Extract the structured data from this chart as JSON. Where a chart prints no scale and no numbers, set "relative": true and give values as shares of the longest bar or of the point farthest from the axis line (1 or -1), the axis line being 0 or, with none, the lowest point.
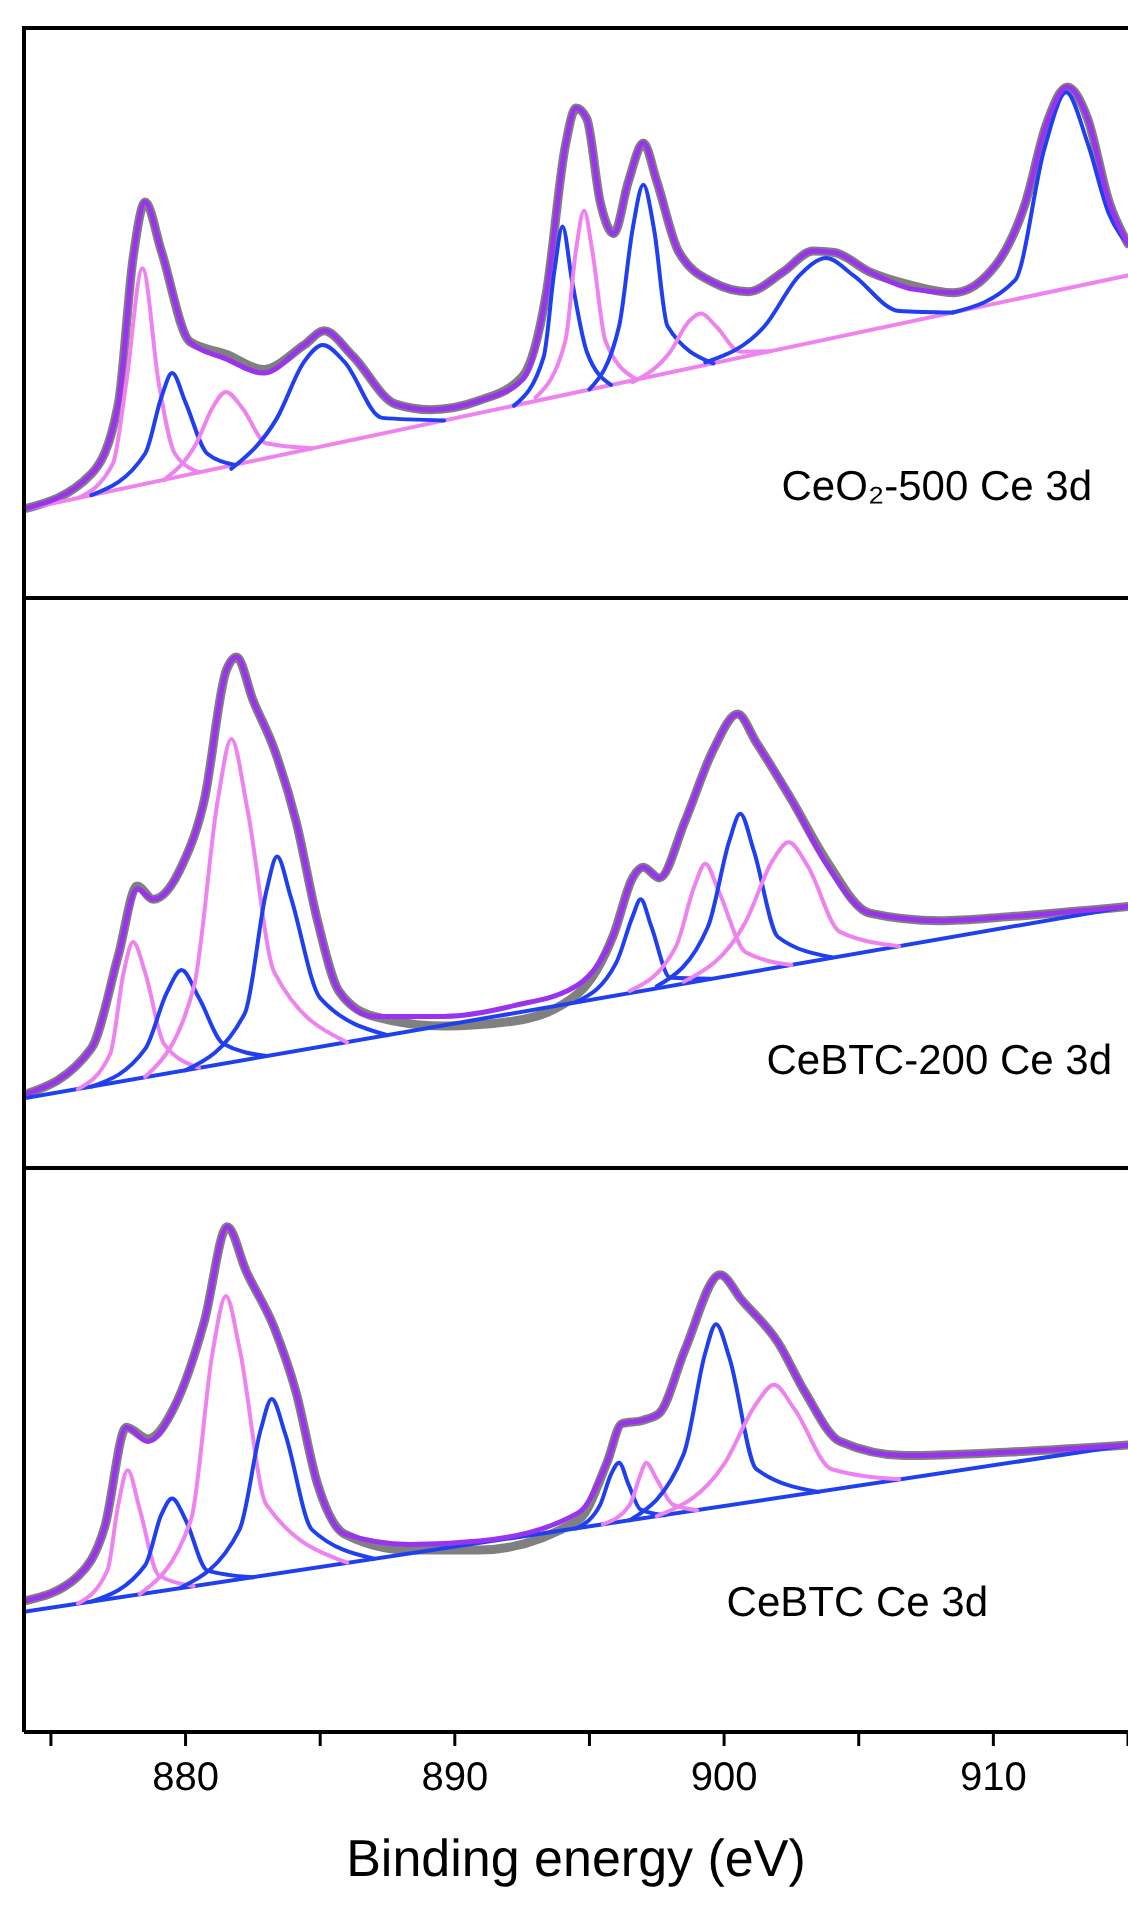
{
  "chart_data": [
    {
      "type": "line",
      "relative": true,
      "xlim": [
        874,
        915
      ],
      "tick_labels": false,
      "annotations": [
        "CeO₂-500 Ce 3d"
      ],
      "series": [
        {
          "color": "#808080",
          "x": [
            874,
            876.5,
            877.5,
            878.05,
            878.5,
            879.1,
            880.15,
            881.5,
            882.9,
            884.4,
            885.15,
            886.2,
            887.8,
            889.1,
            890.9,
            892.5,
            893.4,
            894.1,
            894.5,
            894.9,
            895.4,
            895.9,
            896.45,
            897.0,
            897.5,
            898.3,
            899.6,
            900.9,
            902.2,
            903.3,
            904.1,
            905.4,
            907.0,
            908.5,
            910.1,
            911.2,
            911.95,
            912.75,
            913.5,
            914.3,
            915
          ],
          "values": [
            0.171,
            0.24,
            0.377,
            0.664,
            0.774,
            0.678,
            0.5,
            0.475,
            0.445,
            0.493,
            0.521,
            0.472,
            0.377,
            0.366,
            0.384,
            0.43,
            0.596,
            0.883,
            0.959,
            0.938,
            0.774,
            0.712,
            0.815,
            0.89,
            0.815,
            0.678,
            0.616,
            0.598,
            0.637,
            0.678,
            0.675,
            0.637,
            0.61,
            0.596,
            0.651,
            0.774,
            0.924,
            1.0,
            0.938,
            0.774,
            0.692
          ]
        },
        {
          "color": "#ee82ee",
          "x": [
            874,
            915
          ],
          "values": [
            0.17,
            0.63
          ]
        },
        {
          "color": "#ee82ee",
          "x": [
            876,
            877.3,
            877.8,
            878.4,
            879.0,
            879.6,
            880.5
          ],
          "values": [
            0.192,
            0.26,
            0.42,
            0.644,
            0.42,
            0.28,
            0.243
          ]
        },
        {
          "color": "#2040f0",
          "x": [
            876.5,
            878.5,
            879.1,
            879.5,
            880.0,
            880.8,
            881.8
          ],
          "values": [
            0.198,
            0.28,
            0.39,
            0.438,
            0.38,
            0.28,
            0.258
          ]
        },
        {
          "color": "#ee82ee",
          "x": [
            879.2,
            880.4,
            881.0,
            881.5,
            882.1,
            883.0,
            884.7
          ],
          "values": [
            0.228,
            0.3,
            0.37,
            0.401,
            0.37,
            0.3,
            0.29
          ]
        },
        {
          "color": "#2040f0",
          "x": [
            881.7,
            883.4,
            884.4,
            885.1,
            885.9,
            887.3,
            889.6
          ],
          "values": [
            0.25,
            0.35,
            0.46,
            0.493,
            0.46,
            0.35,
            0.345
          ]
        },
        {
          "color": "#2040f0",
          "x": [
            892.2,
            893.3,
            893.7,
            894.0,
            894.35,
            894.9,
            895.8
          ],
          "values": [
            0.374,
            0.47,
            0.64,
            0.726,
            0.62,
            0.48,
            0.415
          ]
        },
        {
          "color": "#ee82ee",
          "x": [
            893.0,
            894.1,
            894.5,
            894.8,
            895.1,
            895.6,
            896.7
          ],
          "values": [
            0.39,
            0.5,
            0.68,
            0.757,
            0.68,
            0.5,
            0.427
          ]
        },
        {
          "color": "#2040f0",
          "x": [
            895.0,
            896.1,
            896.6,
            897.0,
            897.4,
            897.9,
            899.6
          ],
          "values": [
            0.406,
            0.53,
            0.72,
            0.808,
            0.72,
            0.53,
            0.457
          ]
        },
        {
          "color": "#ee82ee",
          "x": [
            896.6,
            898.0,
            898.7,
            899.15,
            899.7,
            900.6,
            901.7
          ],
          "values": [
            0.42,
            0.48,
            0.54,
            0.555,
            0.53,
            0.48,
            0.481
          ]
        },
        {
          "color": "#2040f0",
          "x": [
            899.3,
            901.5,
            902.8,
            903.8,
            904.8,
            906.5,
            908.5
          ],
          "values": [
            0.459,
            0.53,
            0.63,
            0.664,
            0.63,
            0.56,
            0.557
          ]
        },
        {
          "color": "#2040f0",
          "x": [
            908.5,
            910.8,
            911.9,
            912.7,
            913.5,
            914.3,
            915
          ],
          "values": [
            0.557,
            0.62,
            0.88,
            0.99,
            0.89,
            0.75,
            0.692
          ]
        },
        {
          "color": "#9933ee",
          "x": [
            874,
            876.5,
            877.5,
            878.05,
            878.5,
            879.1,
            880.15,
            881.5,
            882.9,
            884.4,
            885.15,
            886.2,
            887.8,
            889.1,
            890.9,
            892.5,
            893.4,
            894.1,
            894.5,
            894.9,
            895.4,
            895.9,
            896.45,
            897.0,
            897.5,
            898.3,
            899.6,
            900.9,
            902.2,
            903.3,
            904.1,
            905.4,
            907.0,
            908.5,
            910.1,
            911.2,
            911.95,
            912.75,
            913.5,
            914.3,
            915
          ],
          "values": [
            0.171,
            0.24,
            0.377,
            0.664,
            0.774,
            0.678,
            0.5,
            0.466,
            0.438,
            0.493,
            0.521,
            0.472,
            0.377,
            0.366,
            0.384,
            0.425,
            0.596,
            0.883,
            0.959,
            0.938,
            0.774,
            0.712,
            0.815,
            0.89,
            0.815,
            0.678,
            0.616,
            0.598,
            0.637,
            0.678,
            0.675,
            0.637,
            0.603,
            0.596,
            0.651,
            0.774,
            0.924,
            1.0,
            0.938,
            0.774,
            0.692
          ]
        }
      ]
    },
    {
      "type": "line",
      "relative": true,
      "xlim": [
        874,
        915
      ],
      "tick_labels": false,
      "annotations": [
        "CeBTC-200 Ce 3d"
      ],
      "series": [
        {
          "color": "#808080",
          "x": [
            874,
            876.5,
            877.5,
            878.2,
            878.8,
            879.9,
            880.7,
            881.5,
            881.9,
            882.5,
            883.3,
            884.1,
            884.9,
            885.7,
            887.0,
            889.6,
            892.2,
            894.6,
            895.9,
            896.6,
            897.0,
            897.6,
            898.55,
            899.6,
            900.5,
            901.2,
            902.5,
            903.8,
            905.4,
            908.0,
            910.6,
            915
          ],
          "values": [
            0.14,
            0.231,
            0.413,
            0.55,
            0.524,
            0.594,
            0.72,
            0.972,
            1.0,
            0.916,
            0.818,
            0.678,
            0.482,
            0.343,
            0.294,
            0.275,
            0.285,
            0.34,
            0.455,
            0.566,
            0.587,
            0.566,
            0.678,
            0.818,
            0.888,
            0.832,
            0.72,
            0.6,
            0.497,
            0.482,
            0.49,
            0.51
          ]
        },
        {
          "color": "#2040f0",
          "x": [
            874,
            915
          ],
          "values": [
            0.133,
            0.51
          ]
        },
        {
          "color": "#ee82ee",
          "x": [
            876,
            877.2,
            877.7,
            878.05,
            878.5,
            879.2,
            880.5
          ],
          "values": [
            0.151,
            0.22,
            0.38,
            0.44,
            0.38,
            0.24,
            0.193
          ]
        },
        {
          "color": "#2040f0",
          "x": [
            876.5,
            878.5,
            879.3,
            879.85,
            880.5,
            881.4,
            883
          ],
          "values": [
            0.156,
            0.23,
            0.34,
            0.385,
            0.33,
            0.24,
            0.216
          ]
        },
        {
          "color": "#ee82ee",
          "x": [
            878.5,
            880.3,
            881.2,
            881.7,
            882.3,
            883.3,
            886
          ],
          "values": [
            0.175,
            0.35,
            0.72,
            0.839,
            0.7,
            0.38,
            0.243
          ]
        },
        {
          "color": "#2040f0",
          "x": [
            880,
            882.2,
            883,
            883.4,
            883.9,
            885,
            887.5
          ],
          "values": [
            0.188,
            0.3,
            0.54,
            0.608,
            0.53,
            0.33,
            0.257
          ]
        },
        {
          "color": "#2040f0",
          "x": [
            894.5,
            896.0,
            896.6,
            896.9,
            897.3,
            898.0,
            899.5
          ],
          "values": [
            0.322,
            0.4,
            0.49,
            0.524,
            0.47,
            0.37,
            0.368
          ]
        },
        {
          "color": "#ee82ee",
          "x": [
            896.5,
            898.2,
            898.9,
            899.3,
            899.8,
            900.8,
            902.5
          ],
          "values": [
            0.344,
            0.43,
            0.55,
            0.594,
            0.54,
            0.42,
            0.395
          ]
        },
        {
          "color": "#2040f0",
          "x": [
            897.5,
            899.4,
            900.2,
            900.6,
            901.1,
            902.0,
            904
          ],
          "values": [
            0.353,
            0.47,
            0.64,
            0.692,
            0.62,
            0.45,
            0.41
          ]
        },
        {
          "color": "#ee82ee",
          "x": [
            898.5,
            900.8,
            901.8,
            902.4,
            903.1,
            904.3,
            906.5
          ],
          "values": [
            0.362,
            0.48,
            0.6,
            0.636,
            0.59,
            0.46,
            0.432
          ]
        },
        {
          "color": "#9933ee",
          "x": [
            874,
            876.5,
            877.5,
            878.2,
            878.8,
            879.9,
            880.7,
            881.5,
            881.9,
            882.5,
            883.3,
            884.1,
            884.9,
            885.7,
            887.0,
            889.6,
            892.2,
            894.6,
            895.9,
            896.6,
            897.0,
            897.6,
            898.55,
            899.6,
            900.5,
            901.2,
            902.5,
            903.8,
            905.4,
            908.0,
            910.6,
            915
          ],
          "values": [
            0.14,
            0.231,
            0.413,
            0.545,
            0.524,
            0.594,
            0.72,
            0.972,
            1.0,
            0.916,
            0.818,
            0.678,
            0.482,
            0.343,
            0.294,
            0.294,
            0.315,
            0.357,
            0.455,
            0.566,
            0.587,
            0.566,
            0.678,
            0.818,
            0.888,
            0.832,
            0.72,
            0.594,
            0.497,
            0.482,
            0.49,
            0.51
          ]
        }
      ]
    },
    {
      "type": "line",
      "relative": true,
      "xlim": [
        874,
        915
      ],
      "xticks": [
        {
          "value": 875,
          "label": null
        },
        880,
        {
          "value": 885,
          "label": null
        },
        890,
        {
          "value": 895,
          "label": null
        },
        900,
        {
          "value": 905,
          "label": null
        },
        910,
        {
          "value": 915,
          "label": null
        }
      ],
      "tick_labels": "x",
      "xlabel": "Binding energy (eV)",
      "annotations": [
        "CeBTC Ce 3d"
      ],
      "series": [
        {
          "color": "#808080",
          "x": [
            874,
            876.0,
            877.0,
            877.8,
            878.6,
            879.6,
            880.7,
            881.55,
            882.25,
            883.3,
            884.1,
            884.9,
            885.9,
            888.3,
            890.9,
            894.6,
            895.65,
            896.2,
            897.0,
            897.6,
            898.55,
            899.85,
            900.65,
            902.0,
            903.0,
            904.3,
            906.7,
            910.6,
            915
          ],
          "values": [
            0.259,
            0.308,
            0.406,
            0.603,
            0.58,
            0.645,
            0.813,
            1.0,
            0.912,
            0.799,
            0.673,
            0.491,
            0.392,
            0.36,
            0.36,
            0.42,
            0.533,
            0.61,
            0.617,
            0.631,
            0.757,
            0.905,
            0.855,
            0.771,
            0.673,
            0.575,
            0.547,
            0.554,
            0.568
          ]
        },
        {
          "color": "#2040f0",
          "x": [
            874,
            915
          ],
          "values": [
            0.238,
            0.568
          ]
        },
        {
          "color": "#ee82ee",
          "x": [
            876,
            877.1,
            877.5,
            877.85,
            878.3,
            879.0,
            880.3
          ],
          "values": [
            0.254,
            0.32,
            0.45,
            0.518,
            0.44,
            0.31,
            0.289
          ]
        },
        {
          "color": "#2040f0",
          "x": [
            876.5,
            878.5,
            879.1,
            879.5,
            880.0,
            880.8,
            882.5
          ],
          "values": [
            0.258,
            0.33,
            0.43,
            0.462,
            0.42,
            0.32,
            0.306
          ]
        },
        {
          "color": "#ee82ee",
          "x": [
            878.3,
            880.2,
            881.0,
            881.5,
            882.0,
            883.0,
            886.0
          ],
          "values": [
            0.273,
            0.42,
            0.75,
            0.863,
            0.76,
            0.45,
            0.335
          ]
        },
        {
          "color": "#2040f0",
          "x": [
            879.8,
            882.0,
            882.8,
            883.2,
            883.7,
            884.7,
            887.0
          ],
          "values": [
            0.285,
            0.4,
            0.6,
            0.659,
            0.59,
            0.4,
            0.343
          ]
        },
        {
          "color": "#2040f0",
          "x": [
            894.5,
            895.4,
            895.8,
            896.1,
            896.45,
            896.9,
            897.8
          ],
          "values": [
            0.403,
            0.45,
            0.51,
            0.533,
            0.49,
            0.44,
            0.429
          ]
        },
        {
          "color": "#ee82ee",
          "x": [
            895.5,
            896.5,
            896.9,
            897.1,
            897.5,
            898.1,
            899.0
          ],
          "values": [
            0.411,
            0.45,
            0.51,
            0.533,
            0.5,
            0.45,
            0.439
          ]
        },
        {
          "color": "#2040f0",
          "x": [
            896.5,
            898.5,
            899.3,
            899.7,
            900.2,
            901.2,
            903.5
          ],
          "values": [
            0.419,
            0.55,
            0.75,
            0.807,
            0.74,
            0.52,
            0.475
          ]
        },
        {
          "color": "#ee82ee",
          "x": [
            897.5,
            900.0,
            901.2,
            901.85,
            902.6,
            904.0,
            906.5
          ],
          "values": [
            0.427,
            0.53,
            0.65,
            0.687,
            0.64,
            0.52,
            0.5
          ]
        },
        {
          "color": "#9933ee",
          "x": [
            874,
            876.0,
            877.0,
            877.8,
            878.6,
            879.6,
            880.7,
            881.55,
            882.25,
            883.3,
            884.1,
            884.9,
            885.9,
            888.3,
            890.9,
            894.6,
            895.65,
            896.2,
            897.0,
            897.6,
            898.55,
            899.85,
            900.65,
            902.0,
            903.0,
            904.3,
            906.7,
            910.6,
            915
          ],
          "values": [
            0.259,
            0.308,
            0.406,
            0.603,
            0.575,
            0.645,
            0.813,
            1.0,
            0.912,
            0.799,
            0.673,
            0.491,
            0.392,
            0.371,
            0.378,
            0.434,
            0.533,
            0.61,
            0.617,
            0.631,
            0.757,
            0.905,
            0.855,
            0.771,
            0.673,
            0.575,
            0.547,
            0.554,
            0.568
          ]
        }
      ]
    }
  ]
}
